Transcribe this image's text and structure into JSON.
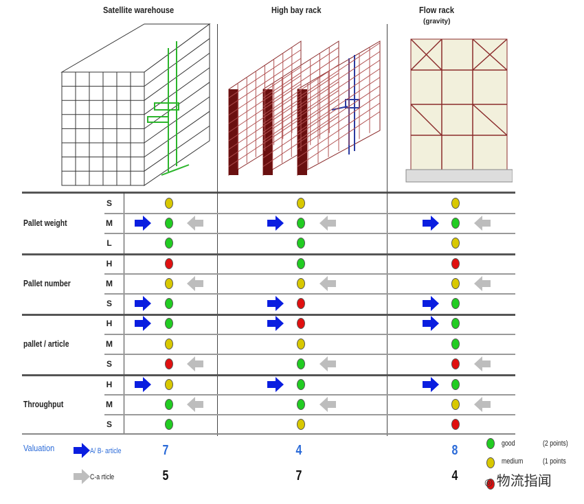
{
  "columns": [
    {
      "title": "Satellite warehouse",
      "subtitle": ""
    },
    {
      "title": "High bay rack",
      "subtitle": ""
    },
    {
      "title": "Flow rack",
      "subtitle": "(gravity)"
    }
  ],
  "colors": {
    "green": "#22cc22",
    "yellow": "#d8c800",
    "red": "#e01010",
    "blue_arrow": "#0a1ee0",
    "grey_arrow": "#bdbdbd",
    "valuation_blue": "#2a6ad8"
  },
  "groups": [
    {
      "label": "Pallet weight",
      "rows": [
        {
          "level": "S",
          "cells": [
            {
              "dot": "yellow"
            },
            {
              "dot": "yellow"
            },
            {
              "dot": "yellow"
            }
          ]
        },
        {
          "level": "M",
          "cells": [
            {
              "dot": "green",
              "blue": true,
              "grey": true
            },
            {
              "dot": "green",
              "blue": true,
              "grey": true
            },
            {
              "dot": "green",
              "blue": true,
              "grey": true
            }
          ]
        },
        {
          "level": "L",
          "cells": [
            {
              "dot": "green"
            },
            {
              "dot": "green"
            },
            {
              "dot": "yellow"
            }
          ]
        }
      ]
    },
    {
      "label": "Pallet number",
      "rows": [
        {
          "level": "H",
          "cells": [
            {
              "dot": "red"
            },
            {
              "dot": "green"
            },
            {
              "dot": "red"
            }
          ]
        },
        {
          "level": "M",
          "cells": [
            {
              "dot": "yellow",
              "grey": true
            },
            {
              "dot": "yellow",
              "grey": true
            },
            {
              "dot": "yellow",
              "grey": true
            }
          ]
        },
        {
          "level": "S",
          "cells": [
            {
              "dot": "green",
              "blue": true
            },
            {
              "dot": "red",
              "blue": true
            },
            {
              "dot": "green",
              "blue": true
            }
          ]
        }
      ]
    },
    {
      "label": "pallet / article",
      "rows": [
        {
          "level": "H",
          "cells": [
            {
              "dot": "green",
              "blue": true
            },
            {
              "dot": "red",
              "blue": true
            },
            {
              "dot": "green",
              "blue": true
            }
          ]
        },
        {
          "level": "M",
          "cells": [
            {
              "dot": "yellow"
            },
            {
              "dot": "yellow"
            },
            {
              "dot": "green"
            }
          ]
        },
        {
          "level": "S",
          "cells": [
            {
              "dot": "red",
              "grey": true
            },
            {
              "dot": "green",
              "grey": true
            },
            {
              "dot": "red",
              "grey": true
            }
          ]
        }
      ]
    },
    {
      "label": "Throughput",
      "rows": [
        {
          "level": "H",
          "cells": [
            {
              "dot": "yellow",
              "blue": true
            },
            {
              "dot": "green",
              "blue": true
            },
            {
              "dot": "green",
              "blue": true
            }
          ]
        },
        {
          "level": "M",
          "cells": [
            {
              "dot": "green",
              "grey": true
            },
            {
              "dot": "green",
              "grey": true
            },
            {
              "dot": "yellow",
              "grey": true
            }
          ]
        },
        {
          "level": "S",
          "cells": [
            {
              "dot": "green"
            },
            {
              "dot": "yellow"
            },
            {
              "dot": "red"
            }
          ]
        }
      ]
    }
  ],
  "valuation": {
    "label": "Valuation",
    "ab_label": "A/ B- article",
    "c_label": "C-a rticle",
    "ab_values": [
      "7",
      "4",
      "8"
    ],
    "c_values": [
      "5",
      "7",
      "4"
    ]
  },
  "legend": [
    {
      "color": "green",
      "label": "good",
      "points": "(2 points)"
    },
    {
      "color": "yellow",
      "label": "medium",
      "points": "(1 points"
    },
    {
      "color": "red",
      "label": "",
      "points": ""
    }
  ],
  "watermark": "物流指闻"
}
